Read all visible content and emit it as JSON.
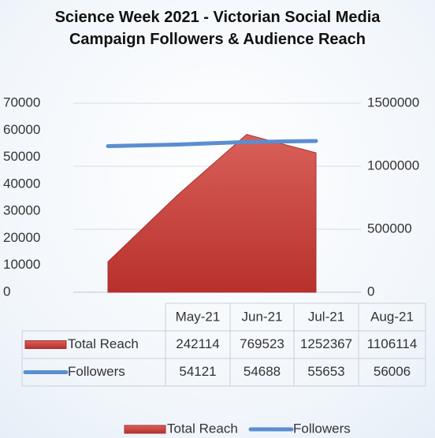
{
  "chart_data": {
    "type": "combo",
    "title": "Science Week 2021 - Victorian Social Media Campaign Followers & Audience Reach",
    "categories": [
      "May-21",
      "Jun-21",
      "Jul-21",
      "Aug-21"
    ],
    "series": [
      {
        "name": "Total Reach",
        "type": "area",
        "axis": "y2",
        "color": "#c9413c",
        "values": [
          242114,
          769523,
          1252367,
          1106114
        ]
      },
      {
        "name": "Followers",
        "type": "line",
        "axis": "y",
        "color": "#5a8ed0",
        "values": [
          54121,
          54688,
          55653,
          56006
        ]
      }
    ],
    "ylim": [
      0,
      70000
    ],
    "yticks": [
      0,
      10000,
      20000,
      30000,
      40000,
      50000,
      60000,
      70000
    ],
    "y2lim": [
      0,
      1500000
    ],
    "y2ticks": [
      0,
      500000,
      1000000,
      1500000
    ],
    "grid": true,
    "legend": "bottom"
  }
}
